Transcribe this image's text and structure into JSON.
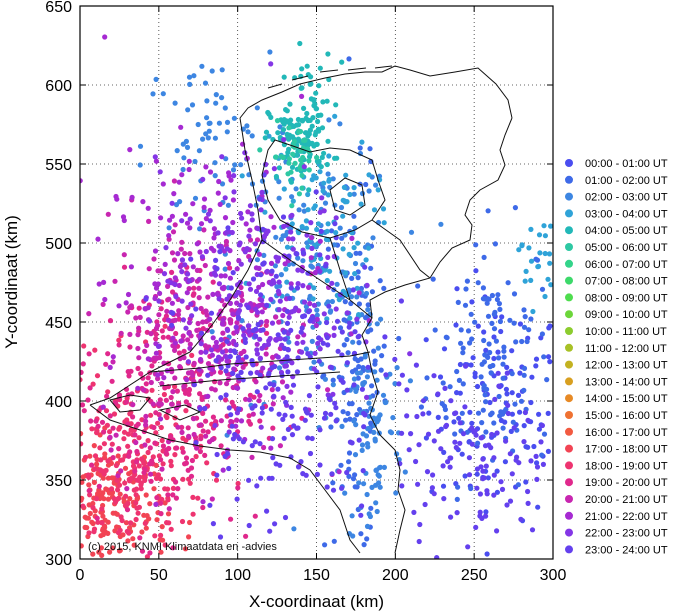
{
  "chart_data": {
    "type": "scatter",
    "xlabel": "X-coordinaat (km)",
    "ylabel": "Y-coordinaat (km)",
    "xlim": [
      0,
      300
    ],
    "ylim": [
      300,
      650
    ],
    "x_ticks": [
      0,
      50,
      100,
      150,
      200,
      250,
      300
    ],
    "y_ticks": [
      300,
      350,
      400,
      450,
      500,
      550,
      600,
      650
    ],
    "grid": true,
    "legend_position": "right",
    "copyright": "(c) 2015, KNMI Klimaatdata en -advies",
    "series": [
      {
        "name": "00:00 - 01:00 UT",
        "color": "#4a4df0",
        "clusters": [
          {
            "x": 265,
            "y": 395,
            "sx": 22,
            "sy": 35,
            "n": 120
          }
        ]
      },
      {
        "name": "01:00 - 02:00 UT",
        "color": "#3e6ae8",
        "clusters": [
          {
            "x": 260,
            "y": 430,
            "sx": 20,
            "sy": 40,
            "n": 140
          },
          {
            "x": 175,
            "y": 420,
            "sx": 10,
            "sy": 60,
            "n": 120
          }
        ]
      },
      {
        "name": "02:00 - 03:00 UT",
        "color": "#3d86e2",
        "clusters": [
          {
            "x": 150,
            "y": 480,
            "sx": 25,
            "sy": 40,
            "n": 160
          },
          {
            "x": 80,
            "y": 560,
            "sx": 20,
            "sy": 30,
            "n": 70
          },
          {
            "x": 185,
            "y": 380,
            "sx": 10,
            "sy": 40,
            "n": 90
          }
        ]
      },
      {
        "name": "03:00 - 04:00 UT",
        "color": "#2fa3d8",
        "clusters": [
          {
            "x": 150,
            "y": 510,
            "sx": 18,
            "sy": 30,
            "n": 110
          },
          {
            "x": 290,
            "y": 490,
            "sx": 6,
            "sy": 15,
            "n": 25
          }
        ]
      },
      {
        "name": "04:00 - 05:00 UT",
        "color": "#22b8b8",
        "clusters": [
          {
            "x": 140,
            "y": 565,
            "sx": 10,
            "sy": 12,
            "n": 120
          },
          {
            "x": 145,
            "y": 600,
            "sx": 8,
            "sy": 12,
            "n": 25
          }
        ]
      },
      {
        "name": "05:00 - 06:00 UT",
        "color": "#2ec8a3",
        "clusters": [
          {
            "x": 138,
            "y": 555,
            "sx": 8,
            "sy": 10,
            "n": 35
          }
        ]
      },
      {
        "name": "06:00 - 07:00 UT",
        "color": "#33d48a",
        "clusters": []
      },
      {
        "name": "07:00 - 08:00 UT",
        "color": "#3cd96a",
        "clusters": []
      },
      {
        "name": "08:00 - 09:00 UT",
        "color": "#4edd4e",
        "clusters": []
      },
      {
        "name": "09:00 - 10:00 UT",
        "color": "#6cd63a",
        "clusters": []
      },
      {
        "name": "10:00 - 11:00 UT",
        "color": "#8ccc2e",
        "clusters": []
      },
      {
        "name": "11:00 - 12:00 UT",
        "color": "#a8c126",
        "clusters": []
      },
      {
        "name": "12:00 - 13:00 UT",
        "color": "#c3b221",
        "clusters": []
      },
      {
        "name": "13:00 - 14:00 UT",
        "color": "#d89f20",
        "clusters": []
      },
      {
        "name": "14:00 - 15:00 UT",
        "color": "#e78a26",
        "clusters": []
      },
      {
        "name": "15:00 - 16:00 UT",
        "color": "#ef7232",
        "clusters": []
      },
      {
        "name": "16:00 - 17:00 UT",
        "color": "#f25a40",
        "clusters": []
      },
      {
        "name": "17:00 - 18:00 UT",
        "color": "#f24454",
        "clusters": [
          {
            "x": 20,
            "y": 330,
            "sx": 18,
            "sy": 22,
            "n": 200
          }
        ]
      },
      {
        "name": "18:00 - 19:00 UT",
        "color": "#ee3470",
        "clusters": [
          {
            "x": 35,
            "y": 360,
            "sx": 22,
            "sy": 30,
            "n": 220
          }
        ]
      },
      {
        "name": "19:00 - 20:00 UT",
        "color": "#e0288c",
        "clusters": [
          {
            "x": 55,
            "y": 400,
            "sx": 30,
            "sy": 40,
            "n": 260
          }
        ]
      },
      {
        "name": "20:00 - 21:00 UT",
        "color": "#c826b0",
        "clusters": [
          {
            "x": 75,
            "y": 440,
            "sx": 30,
            "sy": 40,
            "n": 260
          }
        ]
      },
      {
        "name": "21:00 - 22:00 UT",
        "color": "#a62ad2",
        "clusters": [
          {
            "x": 85,
            "y": 470,
            "sx": 35,
            "sy": 45,
            "n": 240
          }
        ]
      },
      {
        "name": "22:00 - 23:00 UT",
        "color": "#8436e6",
        "clusters": [
          {
            "x": 110,
            "y": 470,
            "sx": 30,
            "sy": 40,
            "n": 220
          }
        ]
      },
      {
        "name": "23:00 - 24:00 UT",
        "color": "#6440ee",
        "clusters": [
          {
            "x": 130,
            "y": 420,
            "sx": 30,
            "sy": 50,
            "n": 240
          },
          {
            "x": 250,
            "y": 360,
            "sx": 25,
            "sy": 30,
            "n": 120
          }
        ]
      }
    ]
  }
}
